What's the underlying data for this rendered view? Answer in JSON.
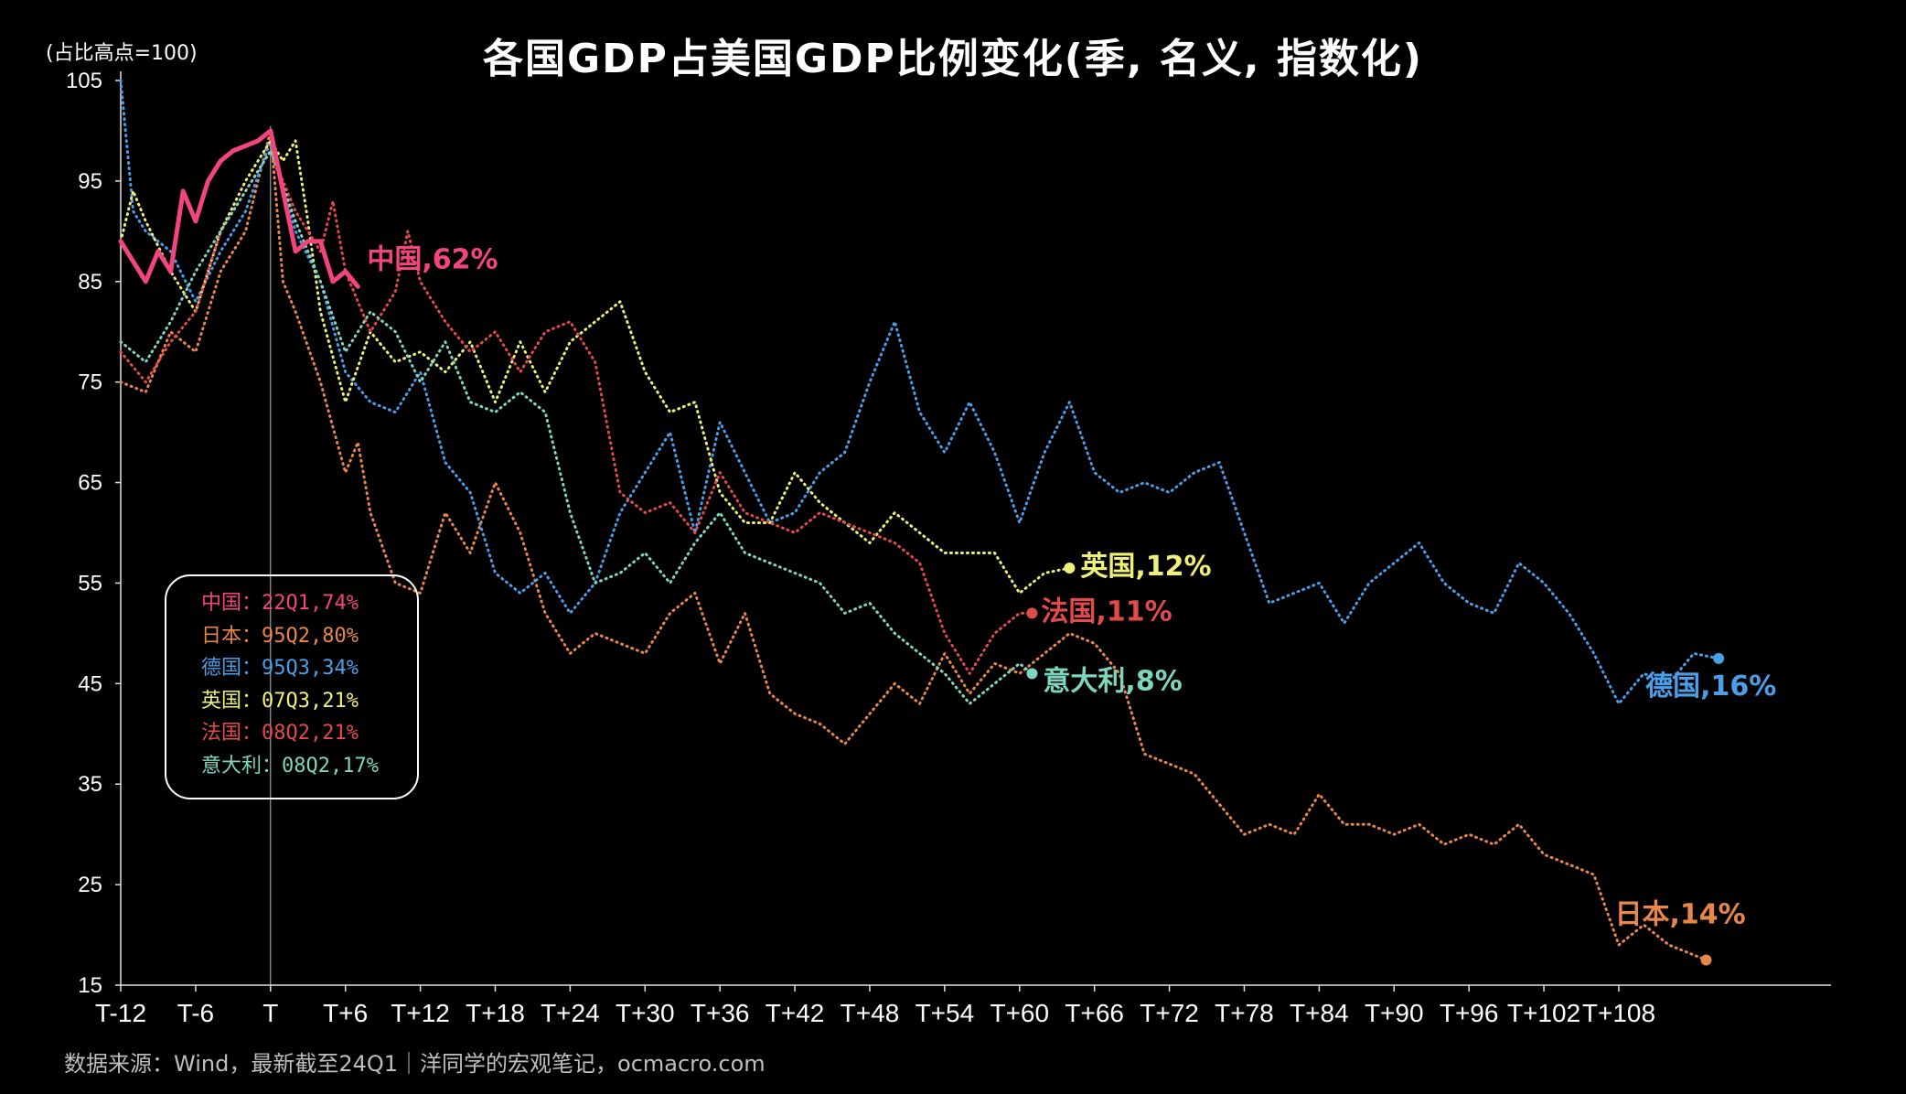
{
  "title": "各国GDP占美国GDP比例变化(季, 名义, 指数化)",
  "unit_note": "(占比高点=100)",
  "source": "数据来源：Wind，最新截至24Q1｜洋同学的宏观笔记，ocmacro.com",
  "legend": [
    {
      "label": "中国：22Q1,74%",
      "color": "#f2447f"
    },
    {
      "label": "日本：95Q2,80%",
      "color": "#e8874a"
    },
    {
      "label": "德国：95Q3,34%",
      "color": "#4b9fe8"
    },
    {
      "label": "英国：07Q3,21%",
      "color": "#eef078"
    },
    {
      "label": "法国：08Q2,21%",
      "color": "#e34b4b"
    },
    {
      "label": "意大利：08Q2,17%",
      "color": "#7fd6c0"
    }
  ],
  "chart_data": {
    "type": "line",
    "xlabel": "",
    "ylabel": "",
    "ylim": [
      15,
      105
    ],
    "xlim": [
      -12,
      125
    ],
    "x_ticks": [
      "T-12",
      "T-6",
      "T",
      "T+6",
      "T+12",
      "T+18",
      "T+24",
      "T+30",
      "T+36",
      "T+42",
      "T+48",
      "T+54",
      "T+60",
      "T+66",
      "T+72",
      "T+78",
      "T+84",
      "T+90",
      "T+96",
      "T+102",
      "T+108"
    ],
    "x_tick_values": [
      -12,
      -6,
      0,
      6,
      12,
      18,
      24,
      30,
      36,
      42,
      48,
      54,
      60,
      66,
      72,
      78,
      84,
      90,
      96,
      102,
      108
    ],
    "y_ticks": [
      15,
      25,
      35,
      45,
      55,
      65,
      75,
      85,
      95,
      105
    ],
    "series": [
      {
        "name": "中国",
        "end_label": "中国,62%",
        "color": "#f2447f",
        "style": "solid",
        "points": [
          [
            -12,
            89
          ],
          [
            -11,
            87
          ],
          [
            -10,
            85
          ],
          [
            -9,
            88
          ],
          [
            -8,
            86
          ],
          [
            -7,
            94
          ],
          [
            -6,
            91
          ],
          [
            -5,
            95
          ],
          [
            -4,
            97
          ],
          [
            -3,
            98
          ],
          [
            -2,
            98.5
          ],
          [
            -1,
            99
          ],
          [
            0,
            100
          ],
          [
            1,
            94
          ],
          [
            2,
            88
          ],
          [
            3,
            89
          ],
          [
            4,
            89
          ],
          [
            5,
            85
          ],
          [
            6,
            86
          ],
          [
            7,
            84.5
          ]
        ]
      },
      {
        "name": "日本",
        "end_label": "日本,14%",
        "color": "#e8874a",
        "style": "dotted",
        "points": [
          [
            -12,
            75
          ],
          [
            -10,
            74
          ],
          [
            -8,
            80
          ],
          [
            -6,
            78
          ],
          [
            -4,
            86
          ],
          [
            -2,
            90
          ],
          [
            0,
            100
          ],
          [
            1,
            85
          ],
          [
            2,
            82
          ],
          [
            4,
            75
          ],
          [
            6,
            66
          ],
          [
            7,
            69
          ],
          [
            8,
            62
          ],
          [
            10,
            55
          ],
          [
            12,
            54
          ],
          [
            14,
            62
          ],
          [
            16,
            58
          ],
          [
            18,
            65
          ],
          [
            20,
            60
          ],
          [
            22,
            52
          ],
          [
            24,
            48
          ],
          [
            26,
            50
          ],
          [
            28,
            49
          ],
          [
            30,
            48
          ],
          [
            32,
            52
          ],
          [
            34,
            54
          ],
          [
            36,
            47
          ],
          [
            38,
            52
          ],
          [
            40,
            44
          ],
          [
            42,
            42
          ],
          [
            44,
            41
          ],
          [
            46,
            39
          ],
          [
            48,
            42
          ],
          [
            50,
            45
          ],
          [
            52,
            43
          ],
          [
            54,
            48
          ],
          [
            56,
            44
          ],
          [
            58,
            47
          ],
          [
            60,
            46
          ],
          [
            62,
            48
          ],
          [
            64,
            50
          ],
          [
            66,
            49
          ],
          [
            68,
            46
          ],
          [
            70,
            38
          ],
          [
            72,
            37
          ],
          [
            74,
            36
          ],
          [
            76,
            33
          ],
          [
            78,
            30
          ],
          [
            80,
            31
          ],
          [
            82,
            30
          ],
          [
            84,
            34
          ],
          [
            86,
            31
          ],
          [
            88,
            31
          ],
          [
            90,
            30
          ],
          [
            92,
            31
          ],
          [
            94,
            29
          ],
          [
            96,
            30
          ],
          [
            98,
            29
          ],
          [
            100,
            31
          ],
          [
            102,
            28
          ],
          [
            104,
            27
          ],
          [
            106,
            26
          ],
          [
            108,
            19
          ],
          [
            110,
            21
          ],
          [
            112,
            19
          ],
          [
            114,
            18
          ],
          [
            115,
            17.5
          ]
        ]
      },
      {
        "name": "德国",
        "end_label": "德国,16%",
        "color": "#4b9fe8",
        "style": "dotted",
        "points": [
          [
            -12,
            105
          ],
          [
            -11,
            92
          ],
          [
            -10,
            90
          ],
          [
            -8,
            88
          ],
          [
            -6,
            83
          ],
          [
            -4,
            88
          ],
          [
            -2,
            92
          ],
          [
            0,
            99
          ],
          [
            2,
            90
          ],
          [
            4,
            85
          ],
          [
            6,
            76
          ],
          [
            8,
            73
          ],
          [
            10,
            72
          ],
          [
            12,
            76
          ],
          [
            14,
            67
          ],
          [
            16,
            64
          ],
          [
            18,
            56
          ],
          [
            20,
            54
          ],
          [
            22,
            56
          ],
          [
            24,
            52
          ],
          [
            26,
            55
          ],
          [
            28,
            62
          ],
          [
            30,
            66
          ],
          [
            32,
            70
          ],
          [
            34,
            60
          ],
          [
            36,
            71
          ],
          [
            38,
            66
          ],
          [
            40,
            61
          ],
          [
            42,
            62
          ],
          [
            44,
            66
          ],
          [
            46,
            68
          ],
          [
            48,
            75
          ],
          [
            50,
            81
          ],
          [
            52,
            72
          ],
          [
            54,
            68
          ],
          [
            56,
            73
          ],
          [
            58,
            68
          ],
          [
            60,
            61
          ],
          [
            62,
            68
          ],
          [
            64,
            73
          ],
          [
            66,
            66
          ],
          [
            68,
            64
          ],
          [
            70,
            65
          ],
          [
            72,
            64
          ],
          [
            74,
            66
          ],
          [
            76,
            67
          ],
          [
            78,
            60
          ],
          [
            80,
            53
          ],
          [
            82,
            54
          ],
          [
            84,
            55
          ],
          [
            86,
            51
          ],
          [
            88,
            55
          ],
          [
            90,
            57
          ],
          [
            92,
            59
          ],
          [
            94,
            55
          ],
          [
            96,
            53
          ],
          [
            98,
            52
          ],
          [
            100,
            57
          ],
          [
            102,
            55
          ],
          [
            104,
            52
          ],
          [
            106,
            48
          ],
          [
            108,
            43
          ],
          [
            110,
            46
          ],
          [
            112,
            45
          ],
          [
            114,
            48
          ],
          [
            116,
            47.5
          ]
        ]
      },
      {
        "name": "英国",
        "end_label": "英国,12%",
        "color": "#eef078",
        "style": "dotted",
        "points": [
          [
            -12,
            89
          ],
          [
            -11,
            94
          ],
          [
            -10,
            91
          ],
          [
            -8,
            86
          ],
          [
            -6,
            82
          ],
          [
            -4,
            90
          ],
          [
            -2,
            95
          ],
          [
            0,
            99
          ],
          [
            1,
            97
          ],
          [
            2,
            99
          ],
          [
            3,
            91
          ],
          [
            4,
            82
          ],
          [
            6,
            73
          ],
          [
            8,
            80
          ],
          [
            10,
            77
          ],
          [
            12,
            78
          ],
          [
            14,
            76
          ],
          [
            16,
            79
          ],
          [
            18,
            73
          ],
          [
            20,
            79
          ],
          [
            22,
            74
          ],
          [
            24,
            79
          ],
          [
            26,
            81
          ],
          [
            28,
            83
          ],
          [
            30,
            76
          ],
          [
            32,
            72
          ],
          [
            34,
            73
          ],
          [
            36,
            64
          ],
          [
            38,
            61
          ],
          [
            40,
            61
          ],
          [
            42,
            66
          ],
          [
            44,
            63
          ],
          [
            46,
            61
          ],
          [
            48,
            59
          ],
          [
            50,
            62
          ],
          [
            52,
            60
          ],
          [
            54,
            58
          ],
          [
            56,
            58
          ],
          [
            58,
            58
          ],
          [
            60,
            54
          ],
          [
            62,
            56
          ],
          [
            64,
            56.5
          ]
        ]
      },
      {
        "name": "法国",
        "end_label": "法国,11%",
        "color": "#e34b4b",
        "style": "dotted",
        "points": [
          [
            -12,
            78
          ],
          [
            -10,
            75
          ],
          [
            -8,
            79
          ],
          [
            -6,
            82
          ],
          [
            -4,
            90
          ],
          [
            -2,
            94
          ],
          [
            0,
            98
          ],
          [
            2,
            92
          ],
          [
            4,
            88
          ],
          [
            5,
            93
          ],
          [
            6,
            86
          ],
          [
            8,
            80
          ],
          [
            10,
            84
          ],
          [
            11,
            90
          ],
          [
            12,
            85
          ],
          [
            14,
            81
          ],
          [
            16,
            78
          ],
          [
            18,
            80
          ],
          [
            20,
            76
          ],
          [
            22,
            80
          ],
          [
            24,
            81
          ],
          [
            26,
            77
          ],
          [
            28,
            64
          ],
          [
            30,
            62
          ],
          [
            32,
            63
          ],
          [
            34,
            60
          ],
          [
            36,
            66
          ],
          [
            38,
            62
          ],
          [
            40,
            61
          ],
          [
            42,
            60
          ],
          [
            44,
            62
          ],
          [
            46,
            61
          ],
          [
            48,
            60
          ],
          [
            50,
            59
          ],
          [
            52,
            57
          ],
          [
            54,
            50
          ],
          [
            56,
            46
          ],
          [
            58,
            50
          ],
          [
            60,
            52
          ],
          [
            61,
            52
          ]
        ]
      },
      {
        "name": "意大利",
        "end_label": "意大利,8%",
        "color": "#7fd6c0",
        "style": "dotted",
        "points": [
          [
            -12,
            79
          ],
          [
            -10,
            77
          ],
          [
            -8,
            81
          ],
          [
            -6,
            86
          ],
          [
            -4,
            90
          ],
          [
            -2,
            94
          ],
          [
            0,
            98
          ],
          [
            2,
            91
          ],
          [
            4,
            85
          ],
          [
            6,
            78
          ],
          [
            8,
            82
          ],
          [
            10,
            80
          ],
          [
            12,
            75
          ],
          [
            14,
            79
          ],
          [
            16,
            73
          ],
          [
            18,
            72
          ],
          [
            20,
            74
          ],
          [
            22,
            72
          ],
          [
            24,
            62
          ],
          [
            26,
            55
          ],
          [
            28,
            56
          ],
          [
            30,
            58
          ],
          [
            32,
            55
          ],
          [
            34,
            59
          ],
          [
            36,
            62
          ],
          [
            38,
            58
          ],
          [
            40,
            57
          ],
          [
            42,
            56
          ],
          [
            44,
            55
          ],
          [
            46,
            52
          ],
          [
            48,
            53
          ],
          [
            50,
            50
          ],
          [
            52,
            48
          ],
          [
            54,
            46
          ],
          [
            56,
            43
          ],
          [
            58,
            45
          ],
          [
            60,
            47
          ],
          [
            61,
            46
          ]
        ]
      }
    ]
  }
}
